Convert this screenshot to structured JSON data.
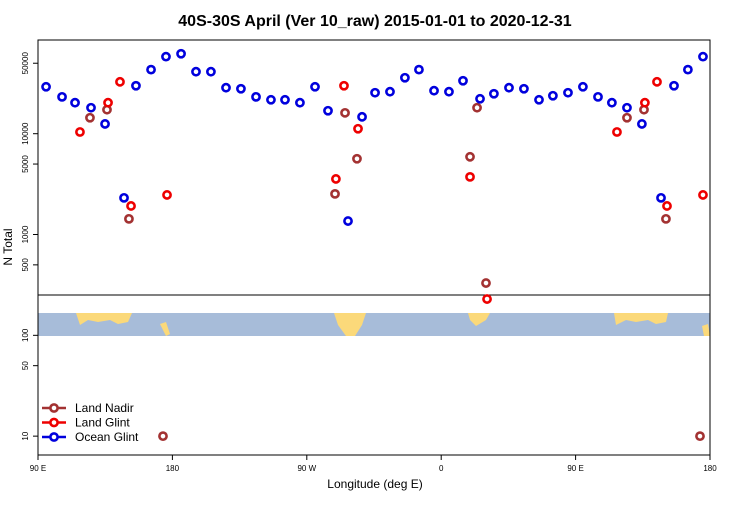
{
  "chart_data": {
    "type": "scatter",
    "title": "40S-30S April (Ver 10_raw)   2015-01-01 to 2020-12-31",
    "x_label": "Longitude (deg E)",
    "y_label": "N Total",
    "log_y": true,
    "legend": "bottom-left",
    "xlim": [
      90,
      540
    ],
    "xticks": [
      {
        "value": 90,
        "label": "90 E"
      },
      180,
      {
        "value": 270,
        "label": "90 W"
      },
      {
        "value": 360,
        "label": "0"
      },
      {
        "value": 450,
        "label": "90 E"
      },
      {
        "value": 540,
        "label": "180"
      }
    ],
    "ylim": [
      6.5,
      85000
    ],
    "yticks": [
      10,
      50,
      100,
      500,
      1000,
      5000,
      10000,
      50000
    ],
    "series": [
      {
        "name": "Land Nadir",
        "color": "#a33232",
        "x": [
          124.8,
          136.2,
          150.9,
          173.7,
          288.9,
          295.6,
          303.6,
          379.3,
          384.0,
          390.0,
          484.4,
          495.8,
          510.5,
          533.3
        ],
        "values": [
          14400,
          17300,
          1430,
          10,
          2530,
          16100,
          5640,
          5900,
          18100,
          330,
          14400,
          17300,
          1430,
          10
        ]
      },
      {
        "name": "Land Glint",
        "color": "#ee0000",
        "x": [
          118.1,
          136.9,
          144.9,
          152.3,
          176.4,
          289.5,
          294.9,
          304.3,
          379.3,
          390.7,
          477.7,
          496.4,
          504.5,
          511.2,
          535.3
        ],
        "values": [
          10400,
          20300,
          32700,
          1920,
          2470,
          3560,
          29900,
          11200,
          3730,
          229,
          10400,
          20300,
          32700,
          1920,
          2470
        ]
      },
      {
        "name": "Ocean Glint",
        "color": "#0000dd",
        "x": [
          95.4,
          106.1,
          114.8,
          125.5,
          134.9,
          147.6,
          155.6,
          165.7,
          175.7,
          185.8,
          195.8,
          205.8,
          215.9,
          225.9,
          236.0,
          246.0,
          255.4,
          265.4,
          275.5,
          284.2,
          297.6,
          307.0,
          315.7,
          325.7,
          335.7,
          345.1,
          355.2,
          365.2,
          374.6,
          386.0,
          395.3,
          405.4,
          415.4,
          425.5,
          434.8,
          444.9,
          454.9,
          465.0,
          474.3,
          484.4,
          494.4,
          507.2,
          515.9,
          525.2,
          535.3
        ],
        "values": [
          29200,
          23200,
          20300,
          18100,
          12500,
          2310,
          29900,
          43200,
          58100,
          62100,
          41200,
          41200,
          28600,
          27900,
          23200,
          21700,
          21700,
          20300,
          29200,
          16900,
          1360,
          14700,
          25500,
          26100,
          35900,
          43200,
          26700,
          26100,
          33500,
          22200,
          24900,
          28600,
          27900,
          21700,
          23800,
          25500,
          29200,
          23200,
          20300,
          18100,
          12500,
          2310,
          29900,
          43200,
          58100
        ]
      }
    ]
  }
}
